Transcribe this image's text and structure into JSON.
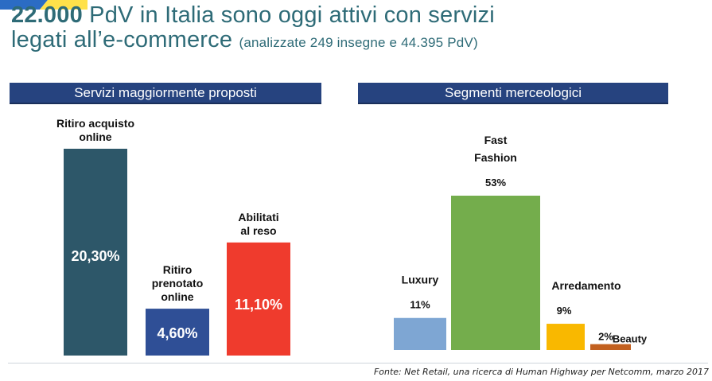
{
  "header": {
    "title_bold": "22.000",
    "title_rest": " PdV in Italia sono oggi attivi con servizi",
    "title_line2": "legati all’e-commerce",
    "subtitle": "(analizzate 249 insegne e 44.395 PdV)"
  },
  "source": "Fonte: Net Retail, una ricerca di Human Highway per Netcomm, marzo 2017",
  "colors": {
    "accent_yellow": "#ffe14a",
    "accent_blue": "#2b6cc4"
  },
  "chart_data": [
    {
      "type": "bar",
      "title": "Servizi maggiormente proposti",
      "categories": [
        "Ritiro acquisto online",
        "Ritiro prenotato online",
        "Abilitati al reso"
      ],
      "label_lines": [
        [
          "Ritiro acquisto",
          "online"
        ],
        [
          "Ritiro",
          "prenotato",
          "online"
        ],
        [
          "Abilitati",
          "al reso"
        ]
      ],
      "values": [
        20.3,
        4.6,
        11.1
      ],
      "value_labels": [
        "20,30%",
        "4,60%",
        "11,10%"
      ],
      "colors": [
        "#2d5769",
        "#2f4f96",
        "#ef3b2d"
      ],
      "ylim": [
        0,
        22
      ]
    },
    {
      "type": "bar",
      "title": "Segmenti merceologici",
      "categories": [
        "Luxury",
        "Fast Fashion",
        "Arredamento",
        "Beauty"
      ],
      "label_lines": [
        [
          "Luxury"
        ],
        [
          "Fast",
          "Fashion"
        ],
        [
          "Arredamento"
        ],
        [
          "Beauty"
        ]
      ],
      "values": [
        11,
        53,
        9,
        2
      ],
      "value_labels": [
        "11%",
        "53%",
        "9%",
        "2%"
      ],
      "colors": [
        "#7ea6d3",
        "#74ad4c",
        "#f9b800",
        "#c2601f"
      ],
      "ylim": [
        0,
        53
      ]
    }
  ]
}
